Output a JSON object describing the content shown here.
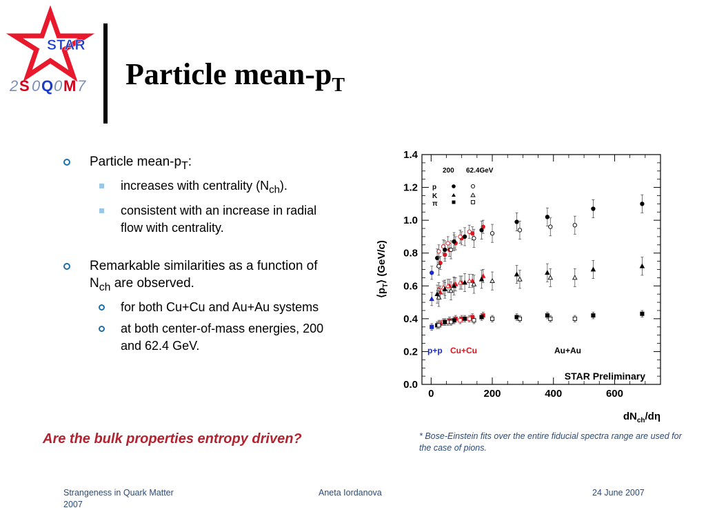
{
  "logo": {
    "star_text": "STAR",
    "conf_parts": [
      "2",
      "S",
      "0",
      "Q",
      "0",
      "M",
      "7"
    ],
    "colors": {
      "star": "#e8192c",
      "text": "#1a3cc8",
      "gray": "#7a8fb3",
      "red": "#d4001b"
    }
  },
  "title": {
    "main": "Particle mean-p",
    "sub": "T"
  },
  "bullets": {
    "b1": {
      "text": "Particle mean-p",
      "sub": "T",
      "after": ":"
    },
    "b1_1": {
      "text": "increases with centrality (N",
      "sub": "ch",
      "after": ")."
    },
    "b1_2": {
      "text": "consistent with an increase in radial flow with centrality."
    },
    "b2": {
      "text": "Remarkable similarities as a function of N",
      "sub": "ch",
      "after": " are observed."
    },
    "b2_1": {
      "text": "for both Cu+Cu and Au+Au systems"
    },
    "b2_2": {
      "text": "at both center-of-mass energies, 200 and 62.4 GeV."
    }
  },
  "question": "Are the bulk properties entropy driven?",
  "footnote": "* Bose-Einstein fits over the entire fiducial spectra range are used for the case of pions.",
  "footer": {
    "left": "Strangeness in Quark Matter 2007",
    "center": "Aneta Iordanova",
    "right": "24 June 2007"
  },
  "chart_data": {
    "type": "scatter",
    "ylabel": "⟨p_T⟩ (GeV/c)",
    "xlabel": "dN_ch/dη",
    "xlim": [
      -30,
      750
    ],
    "ylim": [
      0,
      1.4
    ],
    "xticks": [
      0,
      200,
      400,
      600
    ],
    "xtick_labels": [
      "0",
      "200",
      "400",
      "600"
    ],
    "yticks": [
      0,
      0.2,
      0.4,
      0.6,
      0.8,
      1.0,
      1.2,
      1.4
    ],
    "ytick_labels": [
      "0.0",
      "0.2",
      "0.4",
      "0.6",
      "0.8",
      "1.0",
      "1.2",
      "1.4"
    ],
    "legend_header": [
      "200",
      "62.4GeV"
    ],
    "legend_rows": [
      "p",
      "K",
      "π"
    ],
    "system_labels": [
      {
        "text": "p+p",
        "color": "#1a2ad0"
      },
      {
        "text": "Cu+Cu",
        "color": "#e0141e"
      },
      {
        "text": "Au+Au",
        "color": "#000000"
      }
    ],
    "annotation": "STAR Preliminary",
    "colors": {
      "pp": "#1a2ad0",
      "cucu": "#e0141e",
      "auau": "#000000"
    },
    "series": [
      {
        "system": "p+p",
        "particle": "p",
        "energy": "200",
        "marker": "circle",
        "filled": true,
        "points": [
          [
            2,
            0.68
          ]
        ]
      },
      {
        "system": "p+p",
        "particle": "K",
        "energy": "200",
        "marker": "triangle",
        "filled": true,
        "points": [
          [
            2,
            0.52
          ]
        ]
      },
      {
        "system": "p+p",
        "particle": "π",
        "energy": "200",
        "marker": "square",
        "filled": true,
        "points": [
          [
            2,
            0.35
          ]
        ]
      },
      {
        "system": "Cu+Cu",
        "particle": "p",
        "energy": "200",
        "marker": "circle",
        "filled": true,
        "points": [
          [
            30,
            0.74
          ],
          [
            45,
            0.79
          ],
          [
            60,
            0.82
          ],
          [
            80,
            0.86
          ],
          [
            100,
            0.89
          ],
          [
            135,
            0.92
          ],
          [
            170,
            0.96
          ]
        ]
      },
      {
        "system": "Cu+Cu",
        "particle": "p",
        "energy": "62.4",
        "marker": "circle",
        "filled": false,
        "points": [
          [
            25,
            0.81
          ],
          [
            40,
            0.84
          ],
          [
            55,
            0.86
          ],
          [
            75,
            0.87
          ],
          [
            95,
            0.9
          ],
          [
            125,
            0.93
          ]
        ]
      },
      {
        "system": "Cu+Cu",
        "particle": "K",
        "energy": "200",
        "marker": "triangle",
        "filled": true,
        "points": [
          [
            30,
            0.56
          ],
          [
            45,
            0.58
          ],
          [
            60,
            0.6
          ],
          [
            80,
            0.61
          ],
          [
            100,
            0.62
          ],
          [
            135,
            0.63
          ],
          [
            170,
            0.66
          ]
        ]
      },
      {
        "system": "Cu+Cu",
        "particle": "K",
        "energy": "62.4",
        "marker": "triangle",
        "filled": false,
        "points": [
          [
            25,
            0.58
          ],
          [
            40,
            0.59
          ],
          [
            55,
            0.6
          ],
          [
            75,
            0.61
          ],
          [
            95,
            0.62
          ],
          [
            125,
            0.63
          ]
        ]
      },
      {
        "system": "Cu+Cu",
        "particle": "π",
        "energy": "200",
        "marker": "square",
        "filled": true,
        "points": [
          [
            30,
            0.37
          ],
          [
            45,
            0.38
          ],
          [
            60,
            0.39
          ],
          [
            80,
            0.4
          ],
          [
            100,
            0.4
          ],
          [
            135,
            0.41
          ],
          [
            170,
            0.42
          ]
        ]
      },
      {
        "system": "Cu+Cu",
        "particle": "π",
        "energy": "62.4",
        "marker": "square",
        "filled": false,
        "points": [
          [
            25,
            0.37
          ],
          [
            40,
            0.38
          ],
          [
            55,
            0.38
          ],
          [
            75,
            0.39
          ],
          [
            95,
            0.39
          ],
          [
            125,
            0.4
          ]
        ]
      },
      {
        "system": "Au+Au",
        "particle": "p",
        "energy": "200",
        "marker": "circle",
        "filled": true,
        "points": [
          [
            20,
            0.77
          ],
          [
            45,
            0.82
          ],
          [
            75,
            0.87
          ],
          [
            110,
            0.9
          ],
          [
            165,
            0.94
          ],
          [
            280,
            0.99
          ],
          [
            380,
            1.02
          ],
          [
            530,
            1.07
          ],
          [
            690,
            1.1
          ]
        ]
      },
      {
        "system": "Au+Au",
        "particle": "p",
        "energy": "62.4",
        "marker": "circle",
        "filled": false,
        "points": [
          [
            25,
            0.72
          ],
          [
            65,
            0.82
          ],
          [
            140,
            0.89
          ],
          [
            200,
            0.92
          ],
          [
            290,
            0.94
          ],
          [
            390,
            0.96
          ],
          [
            470,
            0.97
          ]
        ]
      },
      {
        "system": "Au+Au",
        "particle": "K",
        "energy": "200",
        "marker": "triangle",
        "filled": true,
        "points": [
          [
            20,
            0.55
          ],
          [
            45,
            0.58
          ],
          [
            75,
            0.6
          ],
          [
            110,
            0.62
          ],
          [
            165,
            0.64
          ],
          [
            280,
            0.67
          ],
          [
            380,
            0.68
          ],
          [
            530,
            0.7
          ],
          [
            690,
            0.72
          ]
        ]
      },
      {
        "system": "Au+Au",
        "particle": "K",
        "energy": "62.4",
        "marker": "triangle",
        "filled": false,
        "points": [
          [
            25,
            0.53
          ],
          [
            65,
            0.57
          ],
          [
            140,
            0.61
          ],
          [
            200,
            0.63
          ],
          [
            290,
            0.64
          ],
          [
            390,
            0.65
          ],
          [
            470,
            0.65
          ]
        ]
      },
      {
        "system": "Au+Au",
        "particle": "π",
        "energy": "200",
        "marker": "square",
        "filled": true,
        "points": [
          [
            20,
            0.36
          ],
          [
            45,
            0.38
          ],
          [
            75,
            0.39
          ],
          [
            110,
            0.4
          ],
          [
            165,
            0.41
          ],
          [
            280,
            0.41
          ],
          [
            380,
            0.42
          ],
          [
            530,
            0.42
          ],
          [
            690,
            0.43
          ]
        ]
      },
      {
        "system": "Au+Au",
        "particle": "π",
        "energy": "62.4",
        "marker": "square",
        "filled": false,
        "points": [
          [
            25,
            0.36
          ],
          [
            65,
            0.38
          ],
          [
            140,
            0.39
          ],
          [
            200,
            0.4
          ],
          [
            290,
            0.4
          ],
          [
            390,
            0.4
          ],
          [
            470,
            0.4
          ]
        ]
      }
    ]
  }
}
